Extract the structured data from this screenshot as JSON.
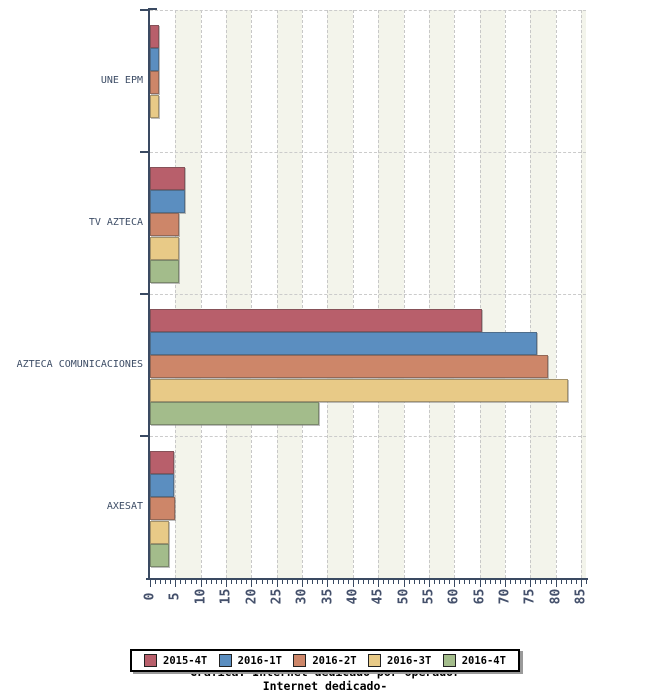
{
  "chart_data": {
    "type": "bar",
    "orientation": "horizontal",
    "title_line1": "Gráfica: Internet dedicado por operador",
    "title_line2": "Internet dedicado-",
    "categories": [
      "UNE EPM",
      "TV AZTECA",
      "AZTECA COMUNICACIONES",
      "AXESAT"
    ],
    "series": [
      {
        "name": "2015-4T",
        "color": "#b85f6b",
        "values": [
          1.4,
          6.5,
          65,
          4.3
        ]
      },
      {
        "name": "2016-1T",
        "color": "#5b8ec0",
        "values": [
          1.3,
          6.5,
          76,
          4.3
        ]
      },
      {
        "name": "2016-2T",
        "color": "#cd8669",
        "values": [
          1.3,
          5.4,
          78,
          4.6
        ]
      },
      {
        "name": "2016-3T",
        "color": "#e8ca87",
        "values": [
          1.4,
          5.4,
          82,
          3.4
        ]
      },
      {
        "name": "2016-4T",
        "color": "#a3bc8b",
        "values": [
          0,
          5.4,
          33,
          3.4
        ]
      }
    ],
    "xlim": [
      0,
      85
    ],
    "x_tick_step": 5,
    "x_minor_tick_step": 1,
    "grid": true,
    "legend_position": "bottom",
    "colors": {
      "axis": "#3a4a62",
      "tick_label": "#44506b",
      "category_label": "#3d4d66",
      "gridline": "#c8c8c8",
      "stripe": "#f3f4eb",
      "background": "#ffffff"
    }
  }
}
